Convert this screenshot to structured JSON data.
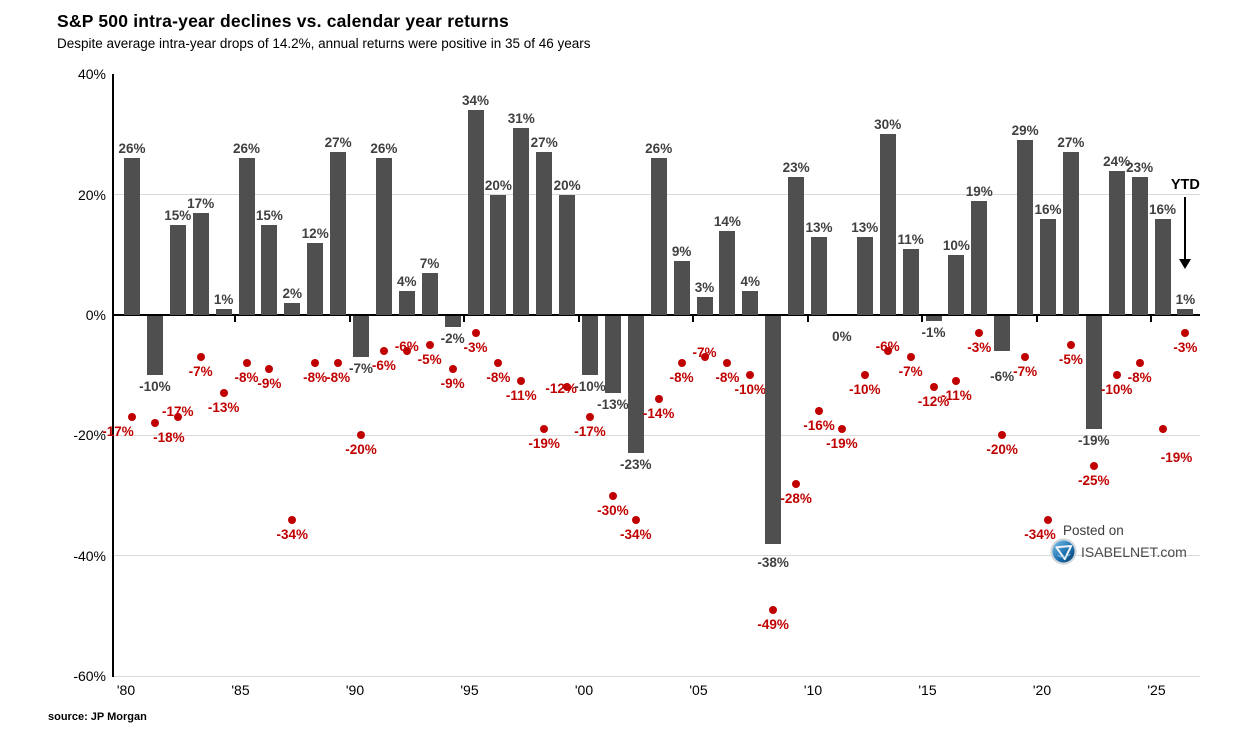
{
  "title": "S&P 500 intra-year declines vs. calendar year returns",
  "subtitle": "Despite average intra-year drops of 14.2%, annual returns were positive in 35 of 46 years",
  "source_label": "source: JP Morgan",
  "watermark": {
    "line1": "Posted on",
    "line2": "ISABELNET.com",
    "logo": "isabelnet-globe-icon"
  },
  "colors": {
    "bar": "#4f4f4f",
    "dot": "#c00000",
    "bar_label": "#404040",
    "dot_label": "#c00000",
    "gridline": "#d9d9d9",
    "axis": "#000000"
  },
  "chart_data": {
    "type": "bar+scatter",
    "title": "S&P 500 intra-year declines vs. calendar year returns",
    "subtitle": "Despite average intra-year drops of 14.2%, annual returns were positive in 35 of 46 years",
    "categories": [
      1980,
      1981,
      1982,
      1983,
      1984,
      1985,
      1986,
      1987,
      1988,
      1989,
      1990,
      1991,
      1992,
      1993,
      1994,
      1995,
      1996,
      1997,
      1998,
      1999,
      2000,
      2001,
      2002,
      2003,
      2004,
      2005,
      2006,
      2007,
      2008,
      2009,
      2010,
      2011,
      2012,
      2013,
      2014,
      2015,
      2016,
      2017,
      2018,
      2019,
      2020,
      2021,
      2022,
      2023,
      2024,
      2025,
      2026
    ],
    "series": [
      {
        "name": "Calendar year return",
        "type": "bar",
        "color": "#4f4f4f",
        "values": [
          26,
          -10,
          15,
          17,
          1,
          26,
          15,
          2,
          12,
          27,
          -7,
          26,
          4,
          7,
          -2,
          34,
          20,
          31,
          27,
          20,
          -10,
          -13,
          -23,
          26,
          9,
          3,
          14,
          4,
          -38,
          23,
          13,
          0,
          13,
          30,
          11,
          -1,
          10,
          19,
          -6,
          29,
          16,
          27,
          -19,
          24,
          23,
          16,
          1
        ]
      },
      {
        "name": "Intra-year decline",
        "type": "scatter",
        "color": "#c00000",
        "values": [
          -17,
          -18,
          -17,
          -7,
          -13,
          -8,
          -9,
          -34,
          -8,
          -8,
          -20,
          -6,
          -6,
          -5,
          -9,
          -3,
          -8,
          -11,
          -19,
          -12,
          -17,
          -30,
          -34,
          -14,
          -8,
          -7,
          -8,
          -10,
          -49,
          -28,
          -16,
          -19,
          -10,
          -6,
          -7,
          -12,
          -11,
          -3,
          -20,
          -7,
          -34,
          -5,
          -25,
          -10,
          -8,
          -19,
          -3
        ]
      }
    ],
    "ylim": [
      -60,
      40
    ],
    "y_ticks": [
      40,
      20,
      0,
      -20,
      -40,
      -60
    ],
    "y_tick_labels": [
      "40%",
      "20%",
      "0%",
      "-20%",
      "-40%",
      "-60%"
    ],
    "x_tick_years": [
      1980,
      1985,
      1990,
      1995,
      2000,
      2005,
      2010,
      2015,
      2020,
      2025
    ],
    "x_tick_labels": [
      "'80",
      "'85",
      "'90",
      "'95",
      "'00",
      "'05",
      "'10",
      "'15",
      "'20",
      "'25"
    ],
    "grid": "horizontal-light",
    "legend": "none",
    "ytd": {
      "label": "YTD",
      "applies_to": 2026,
      "value_label": "1%"
    },
    "dot_label_overrides": {
      "1980": {
        "dx": -14
      },
      "1981": {
        "dx": 14
      },
      "1982": {
        "dy": -20
      },
      "1992": {
        "dy": -19
      },
      "1999": {
        "dx": -6,
        "dy": -13
      },
      "2005": {
        "dy": -19
      },
      "2013": {
        "dy": -19
      },
      "2020": {
        "dx": -8
      },
      "2025": {
        "dx": 14,
        "dy": 14
      }
    },
    "bar_label_overrides": {
      "2008": {
        "dy": 7
      },
      "2011": {
        "dy": 10
      },
      "2018": {
        "dy": 14
      }
    }
  }
}
